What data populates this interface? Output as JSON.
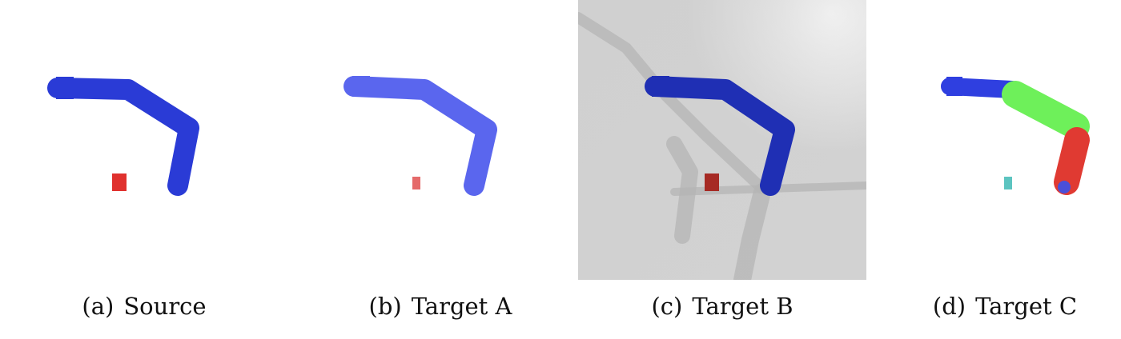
{
  "panels": [
    {
      "id": "a",
      "tag": "(a)",
      "label": "Source",
      "background": "white",
      "arm_color": "#2a3bd6",
      "target_color": "#e0312e"
    },
    {
      "id": "b",
      "tag": "(b)",
      "label": "Target A",
      "background": "white",
      "arm_color": "#5a66ee",
      "target_color": "#e56a6a"
    },
    {
      "id": "c",
      "tag": "(c)",
      "label": "Target B",
      "background": "light-gray-floor-with-shadows",
      "arm_color": "#1f2fb4",
      "target_color": "#a62a24"
    },
    {
      "id": "d",
      "tag": "(d)",
      "label": "Target C",
      "background": "white",
      "arm_segment_colors": [
        "#2f3fe0",
        "#6ef05a",
        "#e03a32"
      ],
      "target_color": "#5cc4c0"
    }
  ]
}
